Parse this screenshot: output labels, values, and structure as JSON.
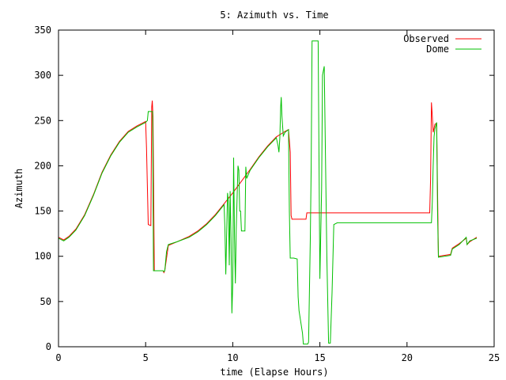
{
  "chart_data": {
    "type": "line",
    "title": "5: Azimuth vs. Time",
    "xlabel": "time (Elapse Hours)",
    "ylabel": "Azimuth",
    "xlim": [
      0,
      25
    ],
    "ylim": [
      0,
      350
    ],
    "xticks": [
      0,
      5,
      10,
      15,
      20,
      25
    ],
    "yticks": [
      0,
      50,
      100,
      150,
      200,
      250,
      300,
      350
    ],
    "grid": false,
    "legend_position": "top-right",
    "series": [
      {
        "name": "Observed",
        "color": "#ff0000",
        "points": [
          [
            0.0,
            121
          ],
          [
            0.3,
            118
          ],
          [
            0.6,
            122
          ],
          [
            1.0,
            130
          ],
          [
            1.5,
            146
          ],
          [
            2.0,
            168
          ],
          [
            2.5,
            193
          ],
          [
            3.0,
            212
          ],
          [
            3.5,
            227
          ],
          [
            4.0,
            238
          ],
          [
            4.5,
            244
          ],
          [
            5.0,
            249
          ],
          [
            5.05,
            220
          ],
          [
            5.15,
            135
          ],
          [
            5.3,
            134
          ],
          [
            5.35,
            265
          ],
          [
            5.38,
            272
          ],
          [
            5.42,
            255
          ],
          [
            5.5,
            84
          ],
          [
            6.0,
            84
          ],
          [
            6.05,
            82
          ],
          [
            6.1,
            84
          ],
          [
            6.3,
            112
          ],
          [
            6.8,
            116
          ],
          [
            7.5,
            122
          ],
          [
            8.0,
            128
          ],
          [
            8.5,
            136
          ],
          [
            9.0,
            146
          ],
          [
            9.5,
            158
          ],
          [
            10.0,
            170
          ],
          [
            10.5,
            183
          ],
          [
            11.0,
            196
          ],
          [
            11.5,
            210
          ],
          [
            12.0,
            222
          ],
          [
            12.5,
            232
          ],
          [
            13.0,
            238
          ],
          [
            13.2,
            240
          ],
          [
            13.3,
            215
          ],
          [
            13.35,
            145
          ],
          [
            13.4,
            141
          ],
          [
            14.2,
            141
          ],
          [
            14.25,
            148
          ],
          [
            21.3,
            148
          ],
          [
            21.35,
            185
          ],
          [
            21.4,
            270
          ],
          [
            21.45,
            255
          ],
          [
            21.5,
            237
          ],
          [
            21.6,
            246
          ],
          [
            21.7,
            247
          ],
          [
            21.8,
            100
          ],
          [
            22.5,
            102
          ],
          [
            22.6,
            109
          ],
          [
            23.0,
            114
          ],
          [
            23.4,
            120
          ],
          [
            23.45,
            113
          ],
          [
            23.6,
            116
          ],
          [
            24.0,
            121
          ]
        ]
      },
      {
        "name": "Dome",
        "color": "#00c000",
        "points": [
          [
            0.0,
            120
          ],
          [
            0.3,
            117
          ],
          [
            0.6,
            121
          ],
          [
            1.0,
            129
          ],
          [
            1.5,
            145
          ],
          [
            2.0,
            167
          ],
          [
            2.5,
            192
          ],
          [
            3.0,
            211
          ],
          [
            3.5,
            226
          ],
          [
            4.0,
            237
          ],
          [
            4.5,
            243
          ],
          [
            5.0,
            248
          ],
          [
            5.1,
            250
          ],
          [
            5.15,
            260
          ],
          [
            5.4,
            260
          ],
          [
            5.45,
            84
          ],
          [
            6.0,
            84
          ],
          [
            6.05,
            83
          ],
          [
            6.1,
            84
          ],
          [
            6.2,
            105
          ],
          [
            6.3,
            113
          ],
          [
            6.8,
            116
          ],
          [
            7.5,
            121
          ],
          [
            8.0,
            127
          ],
          [
            8.5,
            135
          ],
          [
            9.0,
            145
          ],
          [
            9.5,
            157
          ],
          [
            9.55,
            130
          ],
          [
            9.6,
            80
          ],
          [
            9.7,
            170
          ],
          [
            9.75,
            160
          ],
          [
            9.8,
            90
          ],
          [
            9.85,
            172
          ],
          [
            9.9,
            120
          ],
          [
            9.95,
            37
          ],
          [
            10.0,
            70
          ],
          [
            10.05,
            209
          ],
          [
            10.1,
            120
          ],
          [
            10.15,
            70
          ],
          [
            10.2,
            130
          ],
          [
            10.3,
            200
          ],
          [
            10.35,
            195
          ],
          [
            10.4,
            150
          ],
          [
            10.45,
            150
          ],
          [
            10.5,
            128
          ],
          [
            10.6,
            128
          ],
          [
            10.7,
            128
          ],
          [
            10.75,
            199
          ],
          [
            10.8,
            186
          ],
          [
            11.0,
            195
          ],
          [
            11.5,
            209
          ],
          [
            12.0,
            221
          ],
          [
            12.5,
            231
          ],
          [
            12.6,
            222
          ],
          [
            12.65,
            215
          ],
          [
            12.7,
            230
          ],
          [
            12.75,
            265
          ],
          [
            12.78,
            276
          ],
          [
            12.82,
            255
          ],
          [
            12.9,
            233
          ],
          [
            13.0,
            237
          ],
          [
            13.2,
            240
          ],
          [
            13.25,
            150
          ],
          [
            13.3,
            98
          ],
          [
            13.5,
            98
          ],
          [
            13.7,
            97
          ],
          [
            13.75,
            55
          ],
          [
            13.8,
            40
          ],
          [
            14.0,
            15
          ],
          [
            14.05,
            3
          ],
          [
            14.3,
            3
          ],
          [
            14.35,
            5
          ],
          [
            14.45,
            120
          ],
          [
            14.5,
            200
          ],
          [
            14.55,
            338
          ],
          [
            14.9,
            338
          ],
          [
            15.0,
            75
          ],
          [
            15.1,
            175
          ],
          [
            15.15,
            300
          ],
          [
            15.25,
            310
          ],
          [
            15.4,
            100
          ],
          [
            15.5,
            4
          ],
          [
            15.6,
            4
          ],
          [
            15.7,
            60
          ],
          [
            15.8,
            135
          ],
          [
            16.0,
            137
          ],
          [
            21.4,
            137
          ],
          [
            21.45,
            160
          ],
          [
            21.5,
            200
          ],
          [
            21.55,
            232
          ],
          [
            21.6,
            241
          ],
          [
            21.7,
            248
          ],
          [
            21.75,
            150
          ],
          [
            21.8,
            99
          ],
          [
            22.5,
            101
          ],
          [
            22.6,
            108
          ],
          [
            23.0,
            113
          ],
          [
            23.4,
            121
          ],
          [
            23.45,
            113
          ],
          [
            23.6,
            117
          ],
          [
            24.0,
            120
          ]
        ]
      }
    ]
  }
}
